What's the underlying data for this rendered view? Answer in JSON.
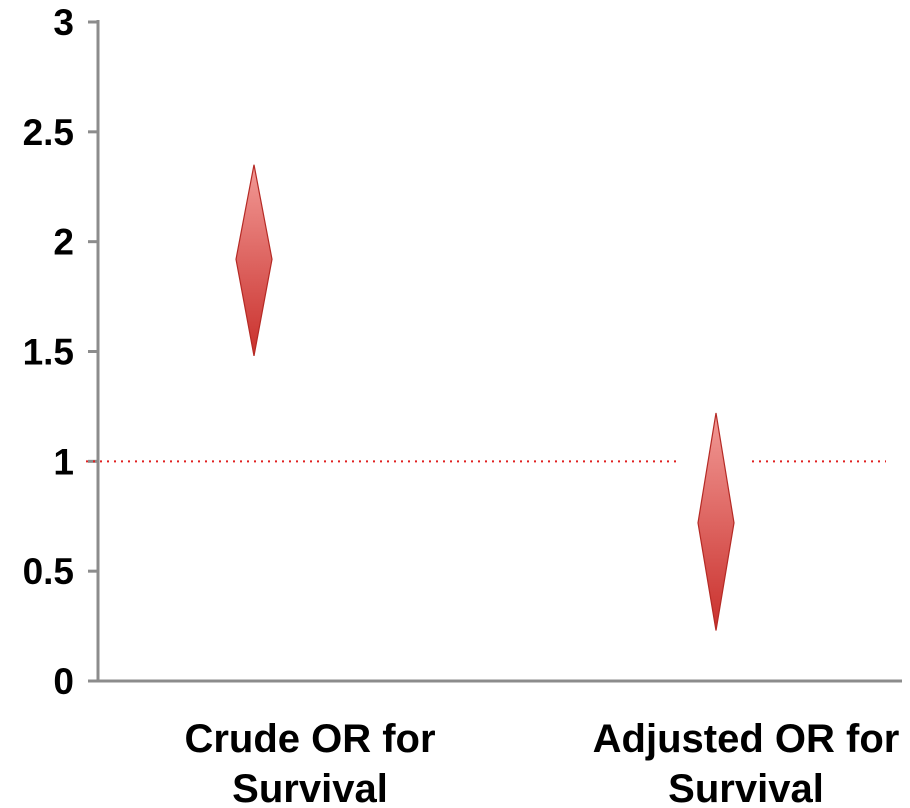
{
  "chart_data": {
    "type": "scatter",
    "title": "",
    "xlabel": "",
    "ylabel": "",
    "ylim": [
      0,
      3
    ],
    "yticks": [
      "0",
      "0.5",
      "1",
      "1.5",
      "2",
      "2.5",
      "3"
    ],
    "grid": false,
    "legend": "none",
    "categories": [
      [
        "Crude OR for",
        "Survival"
      ],
      [
        "Adjusted OR for",
        "Survival"
      ]
    ],
    "points": [
      {
        "estimate": 1.92,
        "lower": 1.48,
        "upper": 2.35
      },
      {
        "estimate": 0.72,
        "lower": 0.23,
        "upper": 1.22
      }
    ],
    "reference_line": {
      "y": 1,
      "style": "dotted",
      "color": "#e02020"
    },
    "colors": {
      "marker_light": "#f29a96",
      "marker_dark": "#c9302c",
      "marker_stroke": "#b52a25",
      "axis": "#8c8c8c"
    }
  }
}
